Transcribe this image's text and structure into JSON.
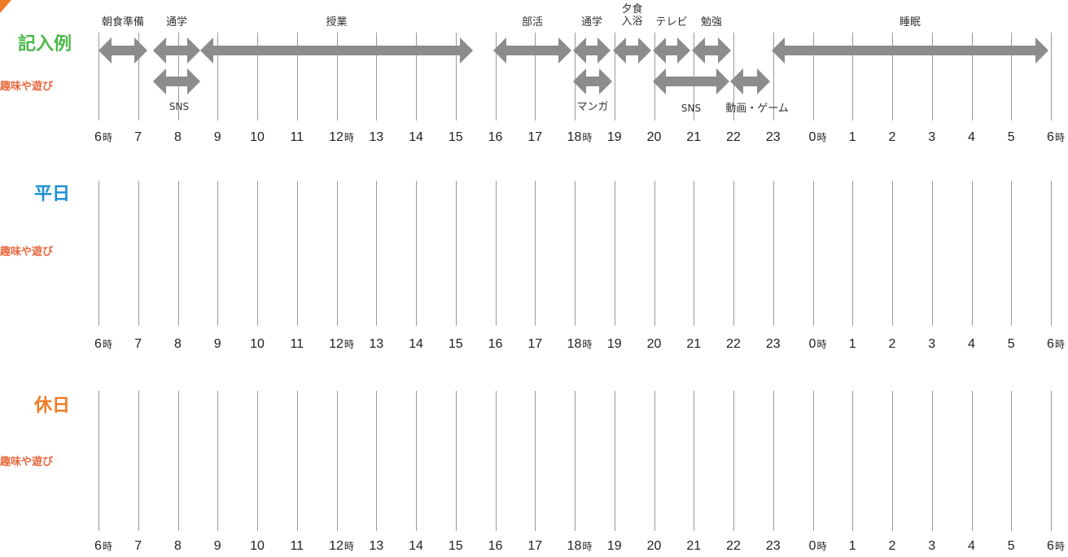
{
  "colors": {
    "example_title": "#4ab84a",
    "weekday_title": "#1a8fd6",
    "holiday_title": "#f07a24",
    "hobby_label": "#e8673c",
    "arrow": "#8c8c8c",
    "gridline": "#9a9a9a"
  },
  "sections": {
    "example": {
      "title": "記入例",
      "sub_label": "趣味や遊び"
    },
    "weekday": {
      "title": "平日",
      "sub_label": "趣味や遊び"
    },
    "holiday": {
      "title": "休日",
      "sub_label": "趣味や遊び"
    }
  },
  "hours": [
    "6時",
    "7",
    "8",
    "9",
    "10",
    "11",
    "12時",
    "13",
    "14",
    "15",
    "16",
    "17",
    "18時",
    "19",
    "20",
    "21",
    "22",
    "23",
    "0時",
    "1",
    "2",
    "3",
    "4",
    "5",
    "6時"
  ],
  "activities_row1": [
    {
      "label": "朝食準備",
      "start": 6,
      "end": 7.2
    },
    {
      "label": "通学",
      "start": 7.4,
      "end": 8.6
    },
    {
      "label": "授業",
      "start": 8.6,
      "end": 15.5
    },
    {
      "label": "部活",
      "start": 16.0,
      "end": 18.0
    },
    {
      "label": "通学",
      "start": 18.0,
      "end": 19.0
    },
    {
      "label": "夕食\n入浴",
      "start": 19.0,
      "end": 20.0
    },
    {
      "label": "テレビ",
      "start": 20.0,
      "end": 21.0
    },
    {
      "label": "勉強",
      "start": 21.0,
      "end": 22.0
    },
    {
      "label": "睡眠",
      "start": 22.0,
      "end": 30.0
    }
  ],
  "activities_row2": [
    {
      "label": "SNS",
      "start": 7.4,
      "end": 8.6
    },
    {
      "label": "マンガ",
      "start": 18.0,
      "end": 19.0
    },
    {
      "label": "SNS",
      "start": 20.0,
      "end": 22.0
    },
    {
      "label": "動画・ゲーム",
      "start": 22.0,
      "end": 23.0
    }
  ]
}
